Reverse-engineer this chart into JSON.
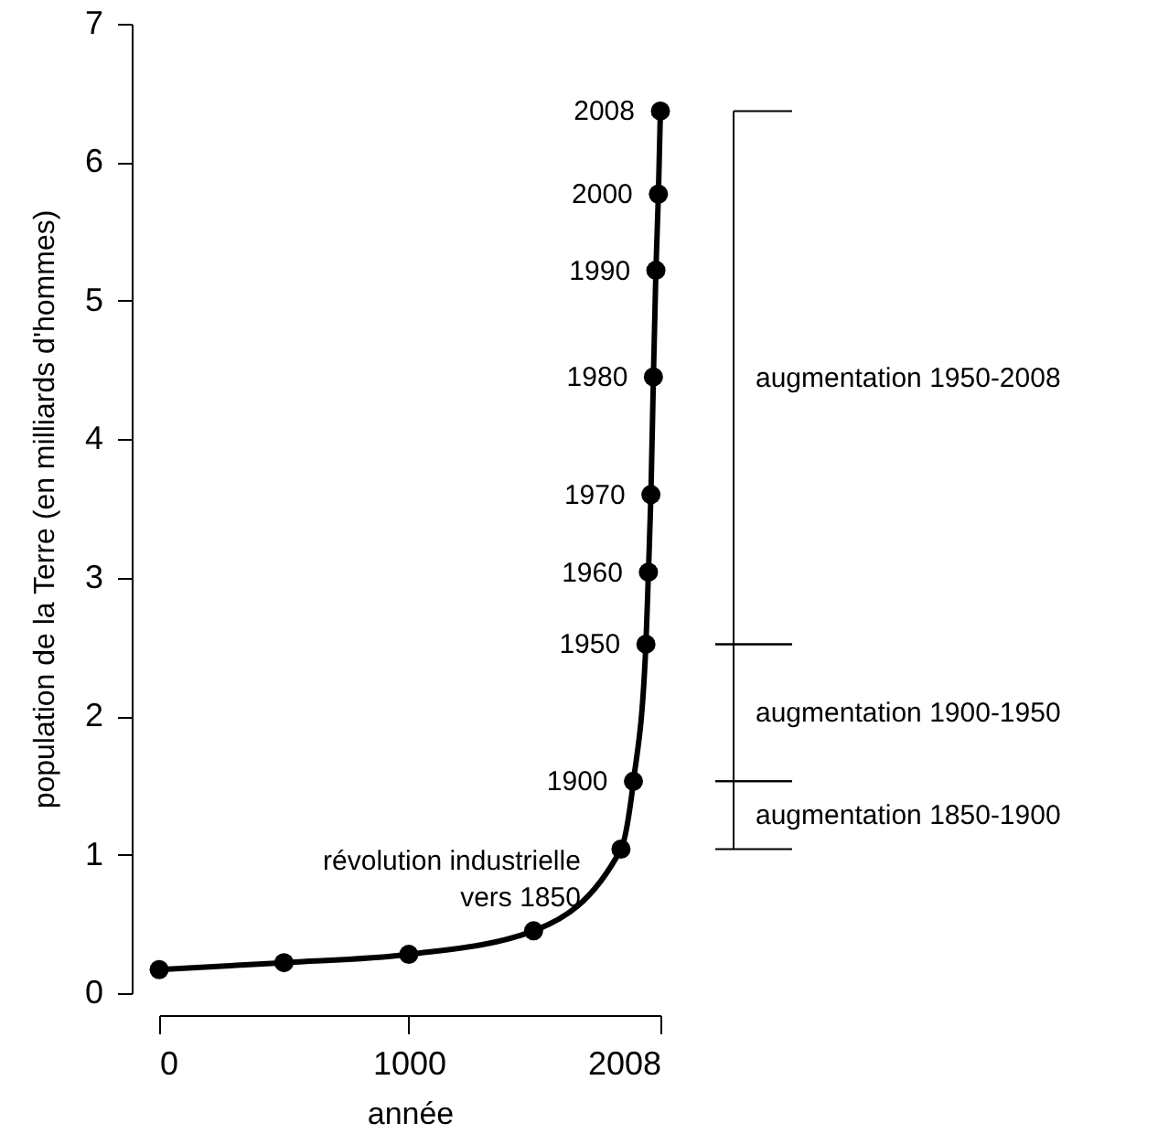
{
  "chart_data": {
    "type": "line",
    "xlabel": "année",
    "ylabel": "population de la Terre (en milliards d'hommes)",
    "x": [
      0,
      500,
      1000,
      1500,
      1850,
      1900,
      1950,
      1960,
      1970,
      1980,
      1990,
      2000,
      2008
    ],
    "series": [
      {
        "color": "#000000",
        "values": [
          0.17,
          0.22,
          0.28,
          0.45,
          1.04,
          1.53,
          2.52,
          3.04,
          3.6,
          4.45,
          5.22,
          5.77,
          6.37
        ]
      }
    ],
    "marker": "circle",
    "line_style": "solid",
    "grid": false,
    "xlim": [
      0,
      2008
    ],
    "xticks": [
      0,
      1000,
      2008
    ],
    "ylim": [
      0,
      7
    ],
    "yticks": [
      0,
      1,
      2,
      3,
      4,
      5,
      6,
      7
    ],
    "annotations": [
      {
        "text": "révolution industrielle\nvers 1850",
        "x": 1850,
        "y": 1.04
      },
      {
        "text": "1900",
        "x": 1900,
        "y": 1.53
      },
      {
        "text": "1950",
        "x": 1950,
        "y": 2.52
      },
      {
        "text": "1960",
        "x": 1960,
        "y": 3.04
      },
      {
        "text": "1970",
        "x": 1970,
        "y": 3.6
      },
      {
        "text": "1980",
        "x": 1980,
        "y": 4.45
      },
      {
        "text": "1990",
        "x": 1990,
        "y": 5.22
      },
      {
        "text": "2000",
        "x": 2000,
        "y": 5.77
      },
      {
        "text": "2008",
        "x": 2008,
        "y": 6.37
      },
      "augmentation 1850-1900",
      "augmentation 1900-1950",
      "augmentation 1950-2008"
    ]
  }
}
